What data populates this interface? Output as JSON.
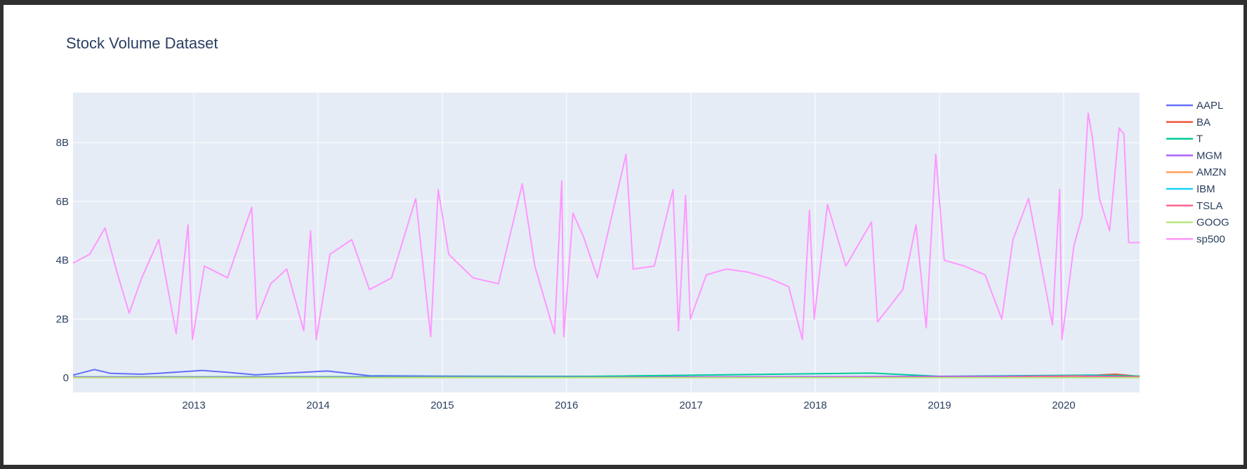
{
  "chart_data": {
    "type": "line",
    "title": "Stock Volume Dataset",
    "xlabel": "",
    "ylabel": "",
    "x_range": [
      "2012-01-12",
      "2020-08-11"
    ],
    "ylim": [
      -500000000,
      9700000000
    ],
    "x_ticks": [
      {
        "date": "2013-01-01",
        "label": "2013"
      },
      {
        "date": "2014-01-01",
        "label": "2014"
      },
      {
        "date": "2015-01-01",
        "label": "2015"
      },
      {
        "date": "2016-01-01",
        "label": "2016"
      },
      {
        "date": "2017-01-01",
        "label": "2017"
      },
      {
        "date": "2018-01-01",
        "label": "2018"
      },
      {
        "date": "2019-01-01",
        "label": "2019"
      },
      {
        "date": "2020-01-01",
        "label": "2020"
      }
    ],
    "y_ticks": [
      {
        "value": 0,
        "label": "0"
      },
      {
        "value": 2000000000,
        "label": "2B"
      },
      {
        "value": 4000000000,
        "label": "4B"
      },
      {
        "value": 6000000000,
        "label": "6B"
      },
      {
        "value": 8000000000,
        "label": "8B"
      }
    ],
    "grid": true,
    "legend_position": "right",
    "series": [
      {
        "name": "AAPL",
        "color": "#636efa",
        "points": [
          [
            "2012-01-12",
            90000000
          ],
          [
            "2012-03-15",
            280000000
          ],
          [
            "2012-05-01",
            150000000
          ],
          [
            "2012-08-01",
            120000000
          ],
          [
            "2012-10-01",
            160000000
          ],
          [
            "2013-01-25",
            250000000
          ],
          [
            "2013-04-15",
            180000000
          ],
          [
            "2013-07-01",
            100000000
          ],
          [
            "2014-01-28",
            230000000
          ],
          [
            "2014-06-01",
            70000000
          ],
          [
            "2015-01-01",
            55000000
          ],
          [
            "2016-01-01",
            50000000
          ],
          [
            "2017-01-01",
            30000000
          ],
          [
            "2018-01-01",
            35000000
          ],
          [
            "2019-01-01",
            30000000
          ],
          [
            "2020-03-15",
            70000000
          ],
          [
            "2020-08-11",
            50000000
          ]
        ]
      },
      {
        "name": "BA",
        "color": "#ef553b",
        "points": [
          [
            "2012-01-12",
            4000000
          ],
          [
            "2016-01-01",
            4000000
          ],
          [
            "2019-03-15",
            12000000
          ],
          [
            "2020-03-15",
            80000000
          ],
          [
            "2020-06-01",
            120000000
          ],
          [
            "2020-08-11",
            50000000
          ]
        ]
      },
      {
        "name": "T",
        "color": "#00cc96",
        "points": [
          [
            "2012-01-12",
            30000000
          ],
          [
            "2014-01-01",
            35000000
          ],
          [
            "2016-01-01",
            40000000
          ],
          [
            "2018-06-15",
            160000000
          ],
          [
            "2019-01-01",
            50000000
          ],
          [
            "2020-03-15",
            90000000
          ],
          [
            "2020-08-11",
            60000000
          ]
        ]
      },
      {
        "name": "MGM",
        "color": "#ab63fa",
        "points": [
          [
            "2012-01-12",
            25000000
          ],
          [
            "2016-01-01",
            15000000
          ],
          [
            "2020-03-15",
            60000000
          ],
          [
            "2020-08-11",
            30000000
          ]
        ]
      },
      {
        "name": "AMZN",
        "color": "#ffa15a",
        "points": [
          [
            "2012-01-12",
            5000000
          ],
          [
            "2016-01-01",
            4000000
          ],
          [
            "2020-08-11",
            6000000
          ]
        ]
      },
      {
        "name": "IBM",
        "color": "#19d3f3",
        "points": [
          [
            "2012-01-12",
            5000000
          ],
          [
            "2016-01-01",
            5000000
          ],
          [
            "2020-08-11",
            6000000
          ]
        ]
      },
      {
        "name": "TSLA",
        "color": "#ff6692",
        "points": [
          [
            "2012-01-12",
            4000000
          ],
          [
            "2016-01-01",
            5000000
          ],
          [
            "2019-06-01",
            12000000
          ],
          [
            "2020-02-04",
            60000000
          ],
          [
            "2020-06-01",
            20000000
          ],
          [
            "2020-08-11",
            40000000
          ]
        ]
      },
      {
        "name": "GOOG",
        "color": "#b6e880",
        "points": [
          [
            "2012-01-12",
            3000000
          ],
          [
            "2016-01-01",
            2000000
          ],
          [
            "2020-08-11",
            2000000
          ]
        ]
      },
      {
        "name": "sp500",
        "color": "#ff97ff",
        "points": [
          [
            "2012-01-12",
            3900000000
          ],
          [
            "2012-03-01",
            4200000000
          ],
          [
            "2012-04-15",
            5100000000
          ],
          [
            "2012-05-20",
            3600000000
          ],
          [
            "2012-06-25",
            2200000000
          ],
          [
            "2012-08-01",
            3400000000
          ],
          [
            "2012-09-20",
            4700000000
          ],
          [
            "2012-11-10",
            1500000000
          ],
          [
            "2012-12-15",
            5200000000
          ],
          [
            "2012-12-28",
            1300000000
          ],
          [
            "2013-02-01",
            3800000000
          ],
          [
            "2013-04-10",
            3400000000
          ],
          [
            "2013-06-20",
            5800000000
          ],
          [
            "2013-07-05",
            2000000000
          ],
          [
            "2013-08-15",
            3200000000
          ],
          [
            "2013-10-01",
            3700000000
          ],
          [
            "2013-11-20",
            1600000000
          ],
          [
            "2013-12-10",
            5000000000
          ],
          [
            "2013-12-27",
            1300000000
          ],
          [
            "2014-02-05",
            4200000000
          ],
          [
            "2014-04-10",
            4700000000
          ],
          [
            "2014-06-01",
            3000000000
          ],
          [
            "2014-08-05",
            3400000000
          ],
          [
            "2014-10-15",
            6100000000
          ],
          [
            "2014-11-28",
            1400000000
          ],
          [
            "2014-12-20",
            6400000000
          ],
          [
            "2015-01-20",
            4200000000
          ],
          [
            "2015-04-01",
            3400000000
          ],
          [
            "2015-06-15",
            3200000000
          ],
          [
            "2015-08-24",
            6600000000
          ],
          [
            "2015-09-30",
            3800000000
          ],
          [
            "2015-11-27",
            1500000000
          ],
          [
            "2015-12-18",
            6700000000
          ],
          [
            "2015-12-24",
            1400000000
          ],
          [
            "2016-01-20",
            5600000000
          ],
          [
            "2016-02-20",
            4800000000
          ],
          [
            "2016-04-01",
            3400000000
          ],
          [
            "2016-06-24",
            7600000000
          ],
          [
            "2016-07-15",
            3700000000
          ],
          [
            "2016-09-15",
            3800000000
          ],
          [
            "2016-11-09",
            6400000000
          ],
          [
            "2016-11-25",
            1600000000
          ],
          [
            "2016-12-16",
            6200000000
          ],
          [
            "2016-12-30",
            2000000000
          ],
          [
            "2017-02-15",
            3500000000
          ],
          [
            "2017-04-15",
            3700000000
          ],
          [
            "2017-06-15",
            3600000000
          ],
          [
            "2017-08-15",
            3400000000
          ],
          [
            "2017-10-15",
            3100000000
          ],
          [
            "2017-11-24",
            1300000000
          ],
          [
            "2017-12-15",
            5700000000
          ],
          [
            "2017-12-29",
            2000000000
          ],
          [
            "2018-02-06",
            5900000000
          ],
          [
            "2018-04-01",
            3800000000
          ],
          [
            "2018-06-15",
            5300000000
          ],
          [
            "2018-07-03",
            1900000000
          ],
          [
            "2018-09-15",
            3000000000
          ],
          [
            "2018-10-24",
            5200000000
          ],
          [
            "2018-11-23",
            1700000000
          ],
          [
            "2018-12-21",
            7600000000
          ],
          [
            "2019-01-15",
            4000000000
          ],
          [
            "2019-03-15",
            3800000000
          ],
          [
            "2019-05-15",
            3500000000
          ],
          [
            "2019-07-03",
            2000000000
          ],
          [
            "2019-08-05",
            4700000000
          ],
          [
            "2019-09-20",
            6100000000
          ],
          [
            "2019-11-29",
            1800000000
          ],
          [
            "2019-12-20",
            6400000000
          ],
          [
            "2019-12-27",
            1300000000
          ],
          [
            "2020-01-31",
            4500000000
          ],
          [
            "2020-02-24",
            5500000000
          ],
          [
            "2020-03-13",
            9000000000
          ],
          [
            "2020-03-25",
            8200000000
          ],
          [
            "2020-04-15",
            6100000000
          ],
          [
            "2020-05-15",
            5000000000
          ],
          [
            "2020-06-12",
            8500000000
          ],
          [
            "2020-06-26",
            8300000000
          ],
          [
            "2020-07-10",
            4600000000
          ],
          [
            "2020-08-11",
            4600000000
          ]
        ]
      }
    ]
  }
}
